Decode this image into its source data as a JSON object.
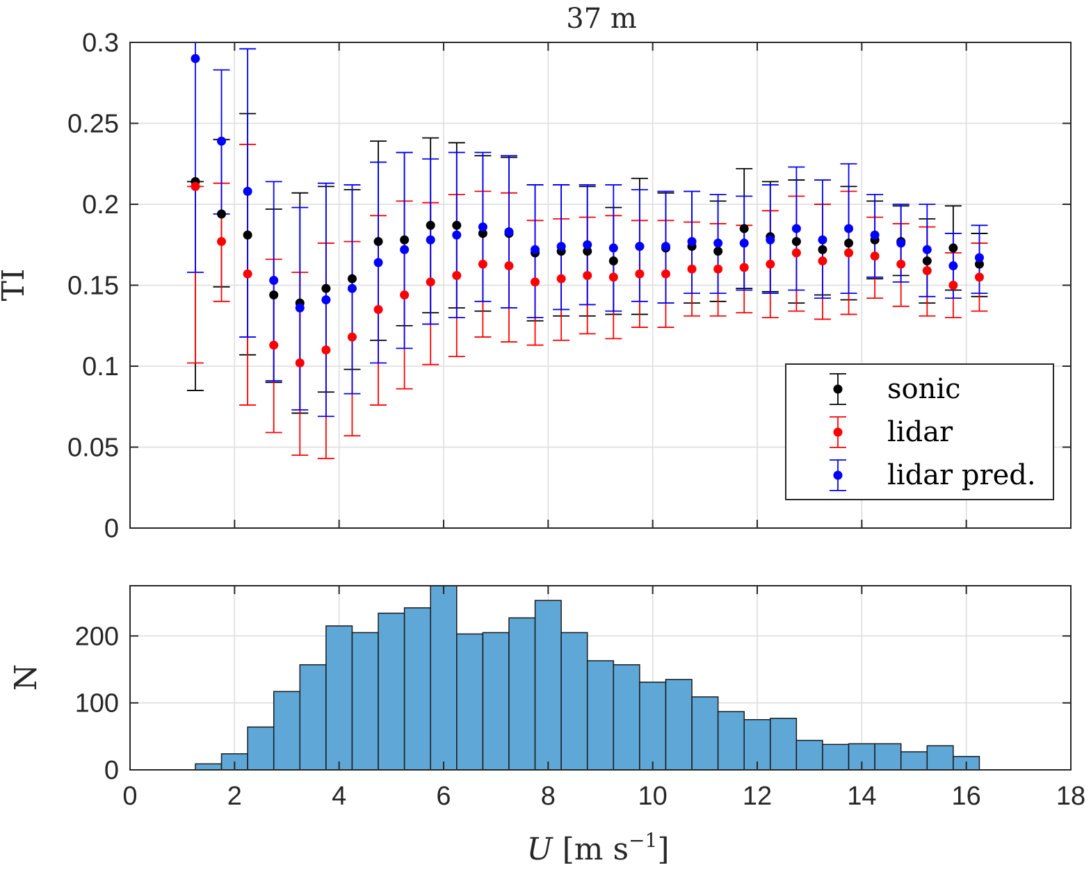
{
  "chart_data": [
    {
      "type": "errorbar",
      "title": "37 m",
      "ylabel": "TI",
      "xlabel": "",
      "xlim": [
        0,
        18
      ],
      "ylim": [
        0,
        0.3
      ],
      "xticks": [
        0,
        2,
        4,
        6,
        8,
        10,
        12,
        14,
        16,
        18
      ],
      "yticks": [
        0,
        0.05,
        0.1,
        0.15,
        0.2,
        0.25,
        0.3
      ],
      "ytick_labels": [
        "0",
        "0.05",
        "0.1",
        "0.15",
        "0.2",
        "0.25",
        "0.3"
      ],
      "grid": true,
      "legend_position": "lower-right",
      "x": [
        1.25,
        1.75,
        2.25,
        2.75,
        3.25,
        3.75,
        4.25,
        4.75,
        5.25,
        5.75,
        6.25,
        6.75,
        7.25,
        7.75,
        8.25,
        8.75,
        9.25,
        9.75,
        10.25,
        10.75,
        11.25,
        11.75,
        12.25,
        12.75,
        13.25,
        13.75,
        14.25,
        14.75,
        15.25,
        15.75,
        16.25
      ],
      "series": [
        {
          "name": "sonic",
          "color": "#000000",
          "offset": 0,
          "y": [
            0.214,
            0.194,
            0.181,
            0.144,
            0.139,
            0.148,
            0.154,
            0.177,
            0.178,
            0.187,
            0.187,
            0.182,
            0.182,
            0.17,
            0.171,
            0.171,
            0.165,
            0.174,
            0.173,
            0.174,
            0.171,
            0.185,
            0.18,
            0.177,
            0.172,
            0.176,
            0.178,
            0.177,
            0.165,
            0.173,
            0.163
          ],
          "lower": [
            0.085,
            0.149,
            0.107,
            0.09,
            0.071,
            0.084,
            0.098,
            0.116,
            0.125,
            0.133,
            0.136,
            0.134,
            0.136,
            0.128,
            0.131,
            0.131,
            0.132,
            0.132,
            0.139,
            0.139,
            0.14,
            0.148,
            0.146,
            0.139,
            0.144,
            0.141,
            0.154,
            0.156,
            0.139,
            0.147,
            0.143
          ],
          "upper": [
            0.214,
            0.24,
            0.256,
            0.197,
            0.207,
            0.211,
            0.209,
            0.239,
            0.232,
            0.241,
            0.238,
            0.23,
            0.229,
            0.212,
            0.212,
            0.211,
            0.198,
            0.216,
            0.207,
            0.208,
            0.202,
            0.222,
            0.214,
            0.215,
            0.2,
            0.211,
            0.202,
            0.199,
            0.191,
            0.199,
            0.182
          ]
        },
        {
          "name": "lidar",
          "color": "#ff0000",
          "offset": 0,
          "y": [
            0.211,
            0.177,
            0.157,
            0.113,
            0.102,
            0.11,
            0.118,
            0.135,
            0.144,
            0.152,
            0.156,
            0.163,
            0.162,
            0.152,
            0.154,
            0.156,
            0.155,
            0.157,
            0.157,
            0.16,
            0.16,
            0.161,
            0.163,
            0.17,
            0.165,
            0.17,
            0.168,
            0.163,
            0.159,
            0.15,
            0.155
          ],
          "lower": [
            0.102,
            0.14,
            0.076,
            0.059,
            0.045,
            0.043,
            0.057,
            0.076,
            0.086,
            0.101,
            0.106,
            0.118,
            0.115,
            0.113,
            0.116,
            0.12,
            0.117,
            0.124,
            0.124,
            0.131,
            0.131,
            0.133,
            0.13,
            0.134,
            0.129,
            0.132,
            0.142,
            0.137,
            0.131,
            0.13,
            0.134
          ],
          "upper": [
            0.211,
            0.213,
            0.237,
            0.166,
            0.158,
            0.176,
            0.177,
            0.193,
            0.202,
            0.201,
            0.206,
            0.208,
            0.207,
            0.19,
            0.191,
            0.192,
            0.193,
            0.19,
            0.19,
            0.189,
            0.188,
            0.187,
            0.196,
            0.205,
            0.2,
            0.208,
            0.192,
            0.188,
            0.186,
            0.17,
            0.176
          ]
        },
        {
          "name": "lidar pred.",
          "color": "#0000ff",
          "offset": 0,
          "y": [
            0.29,
            0.239,
            0.208,
            0.153,
            0.136,
            0.141,
            0.148,
            0.164,
            0.172,
            0.178,
            0.181,
            0.186,
            0.183,
            0.172,
            0.174,
            0.175,
            0.173,
            0.174,
            0.174,
            0.177,
            0.176,
            0.176,
            0.178,
            0.185,
            0.178,
            0.185,
            0.181,
            0.176,
            0.172,
            0.162,
            0.167
          ],
          "lower": [
            0.158,
            0.194,
            0.118,
            0.091,
            0.073,
            0.069,
            0.083,
            0.102,
            0.111,
            0.126,
            0.13,
            0.14,
            0.136,
            0.13,
            0.135,
            0.138,
            0.134,
            0.14,
            0.139,
            0.145,
            0.145,
            0.147,
            0.145,
            0.147,
            0.142,
            0.145,
            0.155,
            0.152,
            0.143,
            0.142,
            0.145
          ],
          "upper": [
            0.3,
            0.283,
            0.296,
            0.214,
            0.198,
            0.213,
            0.212,
            0.226,
            0.232,
            0.228,
            0.232,
            0.232,
            0.23,
            0.212,
            0.212,
            0.212,
            0.212,
            0.209,
            0.208,
            0.208,
            0.206,
            0.205,
            0.212,
            0.223,
            0.215,
            0.225,
            0.206,
            0.2,
            0.2,
            0.182,
            0.187
          ]
        }
      ]
    },
    {
      "type": "bar",
      "ylabel": "N",
      "xlabel": "U [m s−1]",
      "xlim": [
        0,
        18
      ],
      "ylim": [
        0,
        275
      ],
      "xticks": [
        0,
        2,
        4,
        6,
        8,
        10,
        12,
        14,
        16,
        18
      ],
      "xtick_labels": [
        "0",
        "2",
        "4",
        "6",
        "8",
        "10",
        "12",
        "14",
        "16",
        "18"
      ],
      "yticks": [
        0,
        100,
        200
      ],
      "ytick_labels": [
        "0",
        "100",
        "200"
      ],
      "grid": true,
      "color": "#5fa7d6",
      "bin_edges": [
        1.25,
        1.75,
        2.25,
        2.75,
        3.25,
        3.75,
        4.25,
        4.75,
        5.25,
        5.75,
        6.25,
        6.75,
        7.25,
        7.75,
        8.25,
        8.75,
        9.25,
        9.75,
        10.25,
        10.75,
        11.25,
        11.75,
        12.25,
        12.75,
        13.25,
        13.75,
        14.25,
        14.75,
        15.25,
        15.75,
        16.25
      ],
      "values": [
        9,
        24,
        64,
        117,
        157,
        215,
        205,
        234,
        242,
        275,
        203,
        205,
        227,
        253,
        205,
        163,
        157,
        131,
        135,
        109,
        87,
        75,
        77,
        44,
        38,
        39,
        39,
        27,
        36,
        20
      ]
    }
  ]
}
